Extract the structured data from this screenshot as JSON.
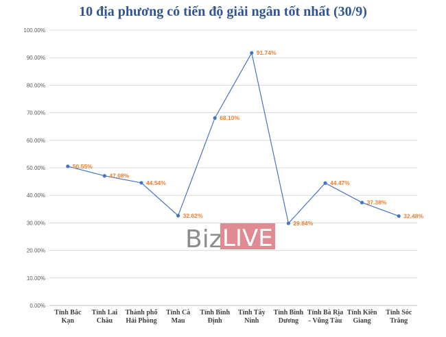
{
  "chart_data": {
    "type": "line",
    "title": "10 địa phương có tiến độ giải ngân tốt nhất (30/9)",
    "categories": [
      [
        "Tỉnh Bắc",
        "Kạn"
      ],
      [
        "Tỉnh Lai",
        "Châu"
      ],
      [
        "Thành phố",
        "Hải Phòng"
      ],
      [
        "Tỉnh Cà",
        "Mau"
      ],
      [
        "Tỉnh Bình",
        "Định"
      ],
      [
        "Tỉnh Tây",
        "Ninh"
      ],
      [
        "Tỉnh Bình",
        "Dương"
      ],
      [
        "Tỉnh Bà Rịa",
        "- Vũng Tàu"
      ],
      [
        "Tỉnh Kiên",
        "Giang"
      ],
      [
        "Tỉnh Sóc",
        "Trăng"
      ]
    ],
    "values": [
      50.55,
      47.08,
      44.54,
      32.62,
      68.1,
      91.74,
      29.84,
      44.47,
      37.38,
      32.48
    ],
    "data_labels": [
      "50.55%",
      "47.08%",
      "44.54%",
      "32.62%",
      "68.10%",
      "91.74%",
      "29.84%",
      "44.47%",
      "37.38%",
      "32.48%"
    ],
    "yticks": [
      "0.00%",
      "10.00%",
      "20.00%",
      "30.00%",
      "40.00%",
      "50.00%",
      "60.00%",
      "70.00%",
      "80.00%",
      "90.00%",
      "100.00%"
    ],
    "ylim": [
      0,
      100
    ],
    "grid": true,
    "xlabel": "",
    "ylabel": "",
    "colors": {
      "line": "#4472c4",
      "label": "#ed7d31",
      "title": "#2f5597"
    }
  },
  "watermark": {
    "part1": "Biz",
    "part2": "LIVE"
  }
}
